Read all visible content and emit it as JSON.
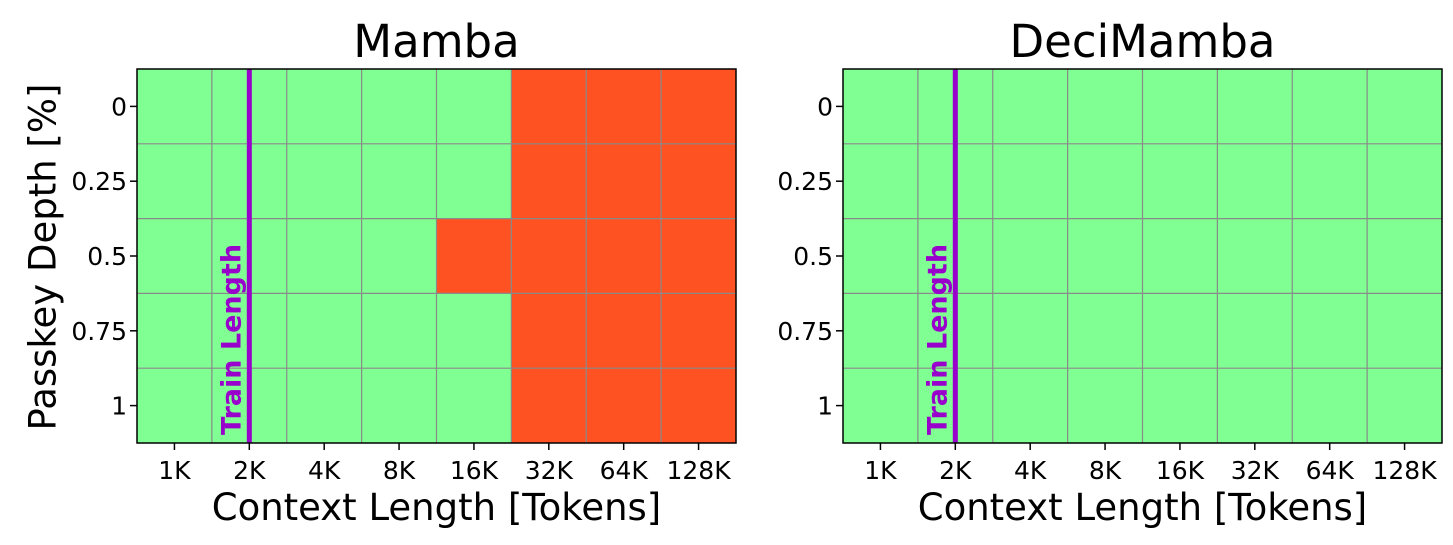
{
  "figure": {
    "ylabel": "Passkey Depth [%]"
  },
  "chart_data": [
    {
      "type": "heatmap",
      "title": "Mamba",
      "xlabel": "Context Length [Tokens]",
      "ylabel": "Passkey Depth [%]",
      "x": [
        "1K",
        "2K",
        "4K",
        "8K",
        "16K",
        "32K",
        "64K",
        "128K"
      ],
      "y": [
        "0",
        "0.25",
        "0.5",
        "0.75",
        "1"
      ],
      "values": [
        [
          1,
          1,
          1,
          1,
          1,
          0,
          0,
          0
        ],
        [
          1,
          1,
          1,
          1,
          1,
          0,
          0,
          0
        ],
        [
          1,
          1,
          1,
          1,
          0,
          0,
          0,
          0
        ],
        [
          1,
          1,
          1,
          1,
          1,
          0,
          0,
          0
        ],
        [
          1,
          1,
          1,
          1,
          1,
          0,
          0,
          0
        ]
      ],
      "colors": {
        "1": "#80ff93",
        "0": "#ff5222"
      },
      "grid": true,
      "annotation": {
        "text": "Train Length",
        "x_value": "2K",
        "color": "#9900cc"
      }
    },
    {
      "type": "heatmap",
      "title": "DeciMamba",
      "xlabel": "Context Length [Tokens]",
      "ylabel": "",
      "x": [
        "1K",
        "2K",
        "4K",
        "8K",
        "16K",
        "32K",
        "64K",
        "128K"
      ],
      "y": [
        "0",
        "0.25",
        "0.5",
        "0.75",
        "1"
      ],
      "values": [
        [
          1,
          1,
          1,
          1,
          1,
          1,
          1,
          1
        ],
        [
          1,
          1,
          1,
          1,
          1,
          1,
          1,
          1
        ],
        [
          1,
          1,
          1,
          1,
          1,
          1,
          1,
          1
        ],
        [
          1,
          1,
          1,
          1,
          1,
          1,
          1,
          1
        ],
        [
          1,
          1,
          1,
          1,
          1,
          1,
          1,
          1
        ]
      ],
      "colors": {
        "1": "#80ff93",
        "0": "#ff5222"
      },
      "grid": true,
      "annotation": {
        "text": "Train Length",
        "x_value": "2K",
        "color": "#9900cc"
      }
    }
  ]
}
